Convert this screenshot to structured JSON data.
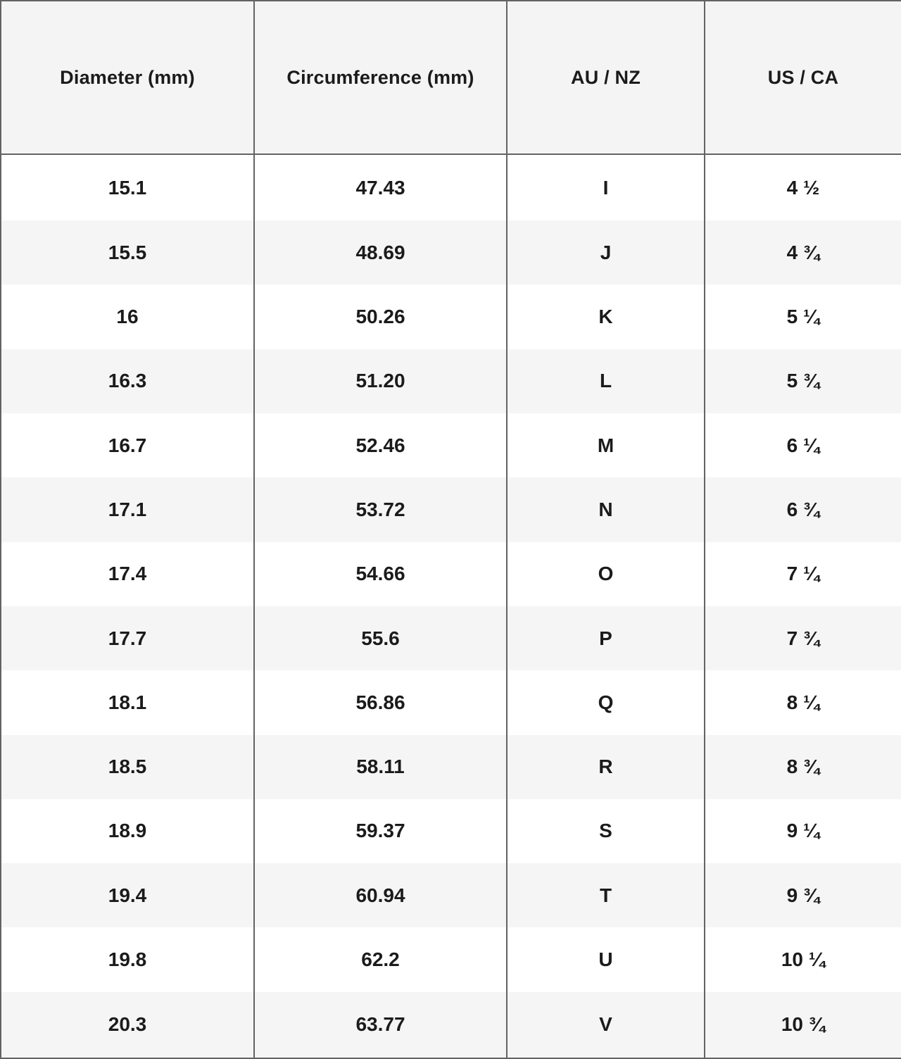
{
  "chart_data": {
    "type": "table",
    "columns": [
      "Diameter (mm)",
      "Circumference (mm)",
      "AU / NZ",
      "US / CA"
    ],
    "rows": [
      [
        "15.1",
        "47.43",
        "I",
        "4 ½"
      ],
      [
        "15.5",
        "48.69",
        "J",
        "4 ¾"
      ],
      [
        "16",
        "50.26",
        "K",
        "5 ¼"
      ],
      [
        "16.3",
        "51.20",
        "L",
        "5 ¾"
      ],
      [
        "16.7",
        "52.46",
        "M",
        "6 ¼"
      ],
      [
        "17.1",
        "53.72",
        "N",
        "6 ¾"
      ],
      [
        "17.4",
        "54.66",
        "O",
        "7 ¼"
      ],
      [
        "17.7",
        "55.6",
        "P",
        "7 ¾"
      ],
      [
        "18.1",
        "56.86",
        "Q",
        "8 ¼"
      ],
      [
        "18.5",
        "58.11",
        "R",
        "8 ¾"
      ],
      [
        "18.9",
        "59.37",
        "S",
        "9 ¼"
      ],
      [
        "19.4",
        "60.94",
        "T",
        "9 ¾"
      ],
      [
        "19.8",
        "62.2",
        "U",
        "10 ¼"
      ],
      [
        "20.3",
        "63.77",
        "V",
        "10 ¾"
      ]
    ]
  },
  "colors": {
    "header_bg": "#f4f4f4",
    "alt_row_bg": "#f5f5f6",
    "border": "#636363",
    "text": "#1b1b1b"
  }
}
